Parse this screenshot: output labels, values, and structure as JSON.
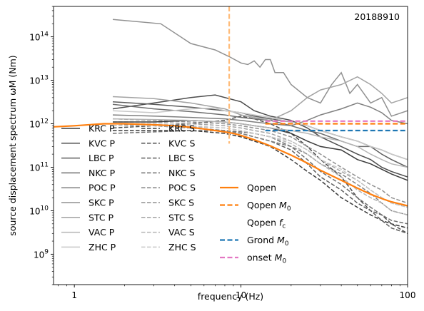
{
  "chart_data": {
    "type": "line",
    "title": "",
    "annotation": "20188910",
    "xlabel": "frequency (Hz)",
    "ylabel": "source displacement spectrum ωM (Nm)",
    "xscale": "log",
    "yscale": "log",
    "xlim": [
      0.75,
      100
    ],
    "ylim": [
      200000000.0,
      500000000000000.0
    ],
    "x_ticks": [
      {
        "value": 1,
        "label": "1"
      },
      {
        "value": 10,
        "label": "10"
      },
      {
        "value": 100,
        "label": "100"
      }
    ],
    "y_ticks": [
      {
        "value": 1000000000.0,
        "base": "10",
        "exp": "9"
      },
      {
        "value": 10000000000.0,
        "base": "10",
        "exp": "10"
      },
      {
        "value": 100000000000.0,
        "base": "10",
        "exp": "11"
      },
      {
        "value": 1000000000000.0,
        "base": "10",
        "exp": "12"
      },
      {
        "value": 10000000000000.0,
        "base": "10",
        "exp": "13"
      },
      {
        "value": 100000000000000.0,
        "base": "10",
        "exp": "14"
      }
    ],
    "grid": false,
    "legend_station_p": [
      "KRC P",
      "KVC P",
      "LBC P",
      "NKC P",
      "POC P",
      "SKC P",
      "STC P",
      "VAC P",
      "ZHC P"
    ],
    "legend_station_s": [
      "KRC S",
      "KVC S",
      "LBC S",
      "NKC S",
      "POC S",
      "SKC S",
      "STC S",
      "VAC S",
      "ZHC S"
    ],
    "legend_model": [
      {
        "label": "Qopen",
        "sub": ""
      },
      {
        "label": "Qopen M",
        "sub": "0"
      },
      {
        "label": "Qopen f",
        "sub": "c"
      },
      {
        "label": "Grond M",
        "sub": "0"
      },
      {
        "label": "onset M",
        "sub": "0"
      }
    ],
    "colors": {
      "qopen": "#ff7f0e",
      "qopen_m0": "#ff7f0e",
      "qopen_fc": "#ffbb78",
      "grond": "#1f77b4",
      "onset": "#e377c2"
    },
    "station_colors": [
      "#3a3a3a",
      "#4d4d4d",
      "#5e5e5e",
      "#6f6f6f",
      "#808080",
      "#919191",
      "#a3a3a3",
      "#b5b5b5",
      "#c8c8c8"
    ],
    "qopen_fc_hz": 8.5,
    "qopen_m0_nm": 1000000000000.0,
    "grond_m0_nm": 700000000000.0,
    "onset_m0_nm": 1150000000000.0,
    "series": [
      {
        "name": "Qopen",
        "kind": "qopen",
        "x": [
          0.75,
          1.0,
          1.5,
          2,
          3,
          4,
          5,
          6,
          7,
          8,
          9,
          10,
          12,
          15,
          20,
          25,
          30,
          40,
          50,
          60,
          70,
          80,
          100
        ],
        "values": [
          850000000000.0,
          900000000000.0,
          1000000000000.0,
          1000000000000.0,
          950000000000.0,
          900000000000.0,
          830000000000.0,
          760000000000.0,
          700000000000.0,
          650000000000.0,
          600000000000.0,
          540000000000.0,
          430000000000.0,
          310000000000.0,
          190000000000.0,
          125000000000.0,
          85000000000.0,
          50000000000.0,
          33000000000.0,
          24000000000.0,
          19000000000.0,
          16000000000.0,
          13000000000.0
        ]
      },
      {
        "name": "Qopen M0",
        "kind": "qopen_m0",
        "x": [
          14,
          100
        ],
        "values": [
          1000000000000.0,
          1000000000000.0
        ]
      },
      {
        "name": "Grond M0",
        "kind": "grond",
        "x": [
          14,
          100
        ],
        "values": [
          700000000000.0,
          700000000000.0
        ]
      },
      {
        "name": "onset M0",
        "kind": "onset",
        "x": [
          14,
          100
        ],
        "values": [
          1150000000000.0,
          1150000000000.0
        ]
      },
      {
        "name": "KRC P",
        "kind": "p",
        "shade": 0,
        "x": [
          1.7,
          3,
          5,
          8,
          10,
          12,
          15,
          20,
          25,
          30,
          40,
          50,
          60,
          70,
          80,
          100
        ],
        "values": [
          1100000000000.0,
          1100000000000.0,
          1200000000000.0,
          1100000000000.0,
          1000000000000.0,
          900000000000.0,
          800000000000.0,
          600000000000.0,
          400000000000.0,
          300000000000.0,
          250000000000.0,
          150000000000.0,
          120000000000.0,
          90000000000.0,
          70000000000.0,
          50000000000.0
        ]
      },
      {
        "name": "KVC P",
        "kind": "p",
        "shade": 1,
        "x": [
          1.7,
          3,
          5,
          7,
          10,
          12,
          15,
          20,
          25,
          30,
          40,
          50,
          60,
          70,
          80,
          100
        ],
        "values": [
          2200000000000.0,
          3000000000000.0,
          4000000000000.0,
          4600000000000.0,
          3200000000000.0,
          2000000000000.0,
          1500000000000.0,
          1200000000000.0,
          800000000000.0,
          500000000000.0,
          300000000000.0,
          200000000000.0,
          150000000000.0,
          100000000000.0,
          80000000000.0,
          60000000000.0
        ]
      },
      {
        "name": "LBC P",
        "kind": "p",
        "shade": 2,
        "x": [
          1.7,
          3,
          5,
          8,
          10,
          12,
          15,
          20,
          25,
          30,
          40,
          50,
          60,
          70,
          80,
          100
        ],
        "values": [
          3200000000000.0,
          2800000000000.0,
          2400000000000.0,
          2000000000000.0,
          1800000000000.0,
          1500000000000.0,
          1300000000000.0,
          1100000000000.0,
          900000000000.0,
          700000000000.0,
          500000000000.0,
          400000000000.0,
          300000000000.0,
          200000000000.0,
          150000000000.0,
          100000000000.0
        ]
      },
      {
        "name": "NKC P",
        "kind": "p",
        "shade": 3,
        "x": [
          1.7,
          3,
          5,
          8,
          10,
          12,
          15,
          20,
          25,
          30,
          40,
          50,
          60,
          70,
          80,
          100
        ],
        "values": [
          2800000000000.0,
          2200000000000.0,
          1900000000000.0,
          1600000000000.0,
          1400000000000.0,
          1300000000000.0,
          1200000000000.0,
          900000000000.0,
          700000000000.0,
          600000000000.0,
          400000000000.0,
          300000000000.0,
          300000000000.0,
          250000000000.0,
          200000000000.0,
          150000000000.0
        ]
      },
      {
        "name": "POC P",
        "kind": "p",
        "shade": 4,
        "x": [
          1.7,
          3,
          5,
          8,
          10,
          12,
          15,
          20,
          25,
          30,
          40,
          50,
          60,
          70,
          80,
          100
        ],
        "values": [
          1600000000000.0,
          1500000000000.0,
          1400000000000.0,
          1300000000000.0,
          1200000000000.0,
          1100000000000.0,
          1000000000000.0,
          900000000000.0,
          1200000000000.0,
          1600000000000.0,
          2200000000000.0,
          3000000000000.0,
          2400000000000.0,
          1800000000000.0,
          1200000000000.0,
          1000000000000.0
        ]
      },
      {
        "name": "SKC P",
        "kind": "p",
        "shade": 5,
        "x": [
          1.7,
          3.3,
          5,
          7,
          8.5,
          10,
          11,
          12,
          13,
          14,
          15,
          16,
          18,
          20,
          25,
          30,
          35,
          40,
          45,
          50,
          60,
          70,
          80,
          100
        ],
        "values": [
          250000000000000.0,
          200000000000000.0,
          70000000000000.0,
          50000000000000.0,
          35000000000000.0,
          25000000000000.0,
          23000000000000.0,
          28000000000000.0,
          20000000000000.0,
          30000000000000.0,
          30000000000000.0,
          15000000000000.0,
          15000000000000.0,
          8000000000000.0,
          4000000000000.0,
          3000000000000.0,
          8000000000000.0,
          15000000000000.0,
          5000000000000.0,
          8000000000000.0,
          3000000000000.0,
          4000000000000.0,
          1500000000000.0,
          2000000000000.0
        ]
      },
      {
        "name": "STC P",
        "kind": "p",
        "shade": 6,
        "x": [
          1.7,
          3,
          5,
          8,
          10,
          12,
          15,
          20,
          25,
          30,
          40,
          50,
          60,
          70,
          80,
          100
        ],
        "values": [
          4200000000000.0,
          3800000000000.0,
          3000000000000.0,
          2200000000000.0,
          1600000000000.0,
          1400000000000.0,
          1200000000000.0,
          2000000000000.0,
          4000000000000.0,
          6000000000000.0,
          8000000000000.0,
          12000000000000.0,
          8000000000000.0,
          5000000000000.0,
          3000000000000.0,
          4000000000000.0
        ]
      },
      {
        "name": "VAC P",
        "kind": "p",
        "shade": 7,
        "x": [
          1.7,
          3,
          5,
          8,
          10,
          12,
          15,
          20,
          25,
          30,
          40,
          50,
          60,
          70,
          80,
          100
        ],
        "values": [
          1300000000000.0,
          1250000000000.0,
          1200000000000.0,
          1100000000000.0,
          1000000000000.0,
          900000000000.0,
          800000000000.0,
          700000000000.0,
          600000000000.0,
          500000000000.0,
          400000000000.0,
          300000000000.0,
          200000000000.0,
          150000000000.0,
          120000000000.0,
          100000000000.0
        ]
      },
      {
        "name": "ZHC P",
        "kind": "p",
        "shade": 8,
        "x": [
          1.7,
          3,
          5,
          7,
          8,
          10,
          12,
          15,
          20,
          25,
          30,
          40,
          50,
          60,
          70,
          80,
          100
        ],
        "values": [
          2000000000000.0,
          1800000000000.0,
          2200000000000.0,
          2300000000000.0,
          2000000000000.0,
          1800000000000.0,
          1600000000000.0,
          1400000000000.0,
          1100000000000.0,
          900000000000.0,
          700000000000.0,
          500000000000.0,
          400000000000.0,
          300000000000.0,
          250000000000.0,
          200000000000.0,
          150000000000.0
        ]
      },
      {
        "name": "KRC S",
        "kind": "s",
        "shade": 0,
        "x": [
          1.7,
          3,
          5,
          8,
          10,
          12,
          15,
          20,
          25,
          30,
          40,
          50,
          60,
          70,
          80,
          100
        ],
        "values": [
          700000000000.0,
          700000000000.0,
          700000000000.0,
          600000000000.0,
          500000000000.0,
          400000000000.0,
          300000000000.0,
          150000000000.0,
          80000000000.0,
          50000000000.0,
          20000000000.0,
          12000000000.0,
          8000000000.0,
          6000000000.0,
          5000000000.0,
          4000000000.0
        ]
      },
      {
        "name": "KVC S",
        "kind": "s",
        "shade": 1,
        "x": [
          1.7,
          3,
          5,
          8,
          10,
          12,
          15,
          20,
          25,
          30,
          40,
          50,
          60,
          70,
          80,
          100
        ],
        "values": [
          800000000000.0,
          900000000000.0,
          1000000000000.0,
          1200000000000.0,
          1500000000000.0,
          1300000000000.0,
          1000000000000.0,
          600000000000.0,
          300000000000.0,
          150000000000.0,
          60000000000.0,
          20000000000.0,
          10000000000.0,
          8000000000.0,
          5000000000.0,
          3000000000.0
        ]
      },
      {
        "name": "LBC S",
        "kind": "s",
        "shade": 2,
        "x": [
          1.7,
          3,
          5,
          8,
          10,
          12,
          15,
          20,
          25,
          30,
          40,
          50,
          60,
          70,
          80,
          100
        ],
        "values": [
          900000000000.0,
          900000000000.0,
          800000000000.0,
          700000000000.0,
          600000000000.0,
          500000000000.0,
          400000000000.0,
          250000000000.0,
          120000000000.0,
          60000000000.0,
          30000000000.0,
          15000000000.0,
          10000000000.0,
          6000000000.0,
          4000000000.0,
          3000000000.0
        ]
      },
      {
        "name": "NKC S",
        "kind": "s",
        "shade": 3,
        "x": [
          1.7,
          3,
          5,
          8,
          10,
          12,
          15,
          20,
          25,
          30,
          40,
          50,
          60,
          70,
          80,
          100
        ],
        "values": [
          600000000000.0,
          650000000000.0,
          700000000000.0,
          700000000000.0,
          650000000000.0,
          600000000000.0,
          500000000000.0,
          300000000000.0,
          150000000000.0,
          80000000000.0,
          40000000000.0,
          20000000000.0,
          12000000000.0,
          8000000000.0,
          6000000000.0,
          5000000000.0
        ]
      },
      {
        "name": "POC S",
        "kind": "s",
        "shade": 4,
        "x": [
          1.7,
          3,
          5,
          8,
          10,
          12,
          15,
          20,
          25,
          30,
          40,
          50,
          60,
          70,
          80,
          100
        ],
        "values": [
          1000000000000.0,
          900000000000.0,
          800000000000.0,
          700000000000.0,
          600000000000.0,
          500000000000.0,
          400000000000.0,
          300000000000.0,
          200000000000.0,
          120000000000.0,
          70000000000.0,
          40000000000.0,
          25000000000.0,
          15000000000.0,
          10000000000.0,
          8000000000.0
        ]
      },
      {
        "name": "SKC S",
        "kind": "s",
        "shade": 5,
        "x": [
          1.7,
          3,
          5,
          8,
          10,
          12,
          15,
          20,
          25,
          30,
          40,
          50,
          60,
          70,
          80,
          100
        ],
        "values": [
          1300000000000.0,
          1200000000000.0,
          1100000000000.0,
          1000000000000.0,
          900000000000.0,
          800000000000.0,
          700000000000.0,
          500000000000.0,
          300000000000.0,
          200000000000.0,
          100000000000.0,
          60000000000.0,
          40000000000.0,
          30000000000.0,
          20000000000.0,
          15000000000.0
        ]
      },
      {
        "name": "STC S",
        "kind": "s",
        "shade": 6,
        "x": [
          1.7,
          3,
          5,
          8,
          10,
          12,
          15,
          20,
          25,
          30,
          40,
          50,
          60,
          70,
          80,
          100
        ],
        "values": [
          1100000000000.0,
          1100000000000.0,
          1000000000000.0,
          900000000000.0,
          800000000000.0,
          700000000000.0,
          600000000000.0,
          400000000000.0,
          250000000000.0,
          150000000000.0,
          80000000000.0,
          50000000000.0,
          30000000000.0,
          20000000000.0,
          15000000000.0,
          12000000000.0
        ]
      },
      {
        "name": "VAC S",
        "kind": "s",
        "shade": 7,
        "x": [
          1.7,
          3,
          5,
          8,
          10,
          12,
          15,
          20,
          25,
          30,
          40,
          50,
          60,
          70,
          80,
          100
        ],
        "values": [
          900000000000.0,
          900000000000.0,
          850000000000.0,
          800000000000.0,
          700000000000.0,
          600000000000.0,
          500000000000.0,
          350000000000.0,
          200000000000.0,
          120000000000.0,
          60000000000.0,
          30000000000.0,
          20000000000.0,
          15000000000.0,
          10000000000.0,
          8000000000.0
        ]
      },
      {
        "name": "ZHC S",
        "kind": "s",
        "shade": 8,
        "x": [
          1.7,
          3,
          5,
          8,
          10,
          12,
          15,
          20,
          25,
          30,
          40,
          50,
          60,
          70,
          80,
          100
        ],
        "values": [
          1000000000000.0,
          1000000000000.0,
          900000000000.0,
          800000000000.0,
          700000000000.0,
          600000000000.0,
          500000000000.0,
          400000000000.0,
          250000000000.0,
          150000000000.0,
          90000000000.0,
          50000000000.0,
          30000000000.0,
          20000000000.0,
          15000000000.0,
          12000000000.0
        ]
      }
    ]
  }
}
